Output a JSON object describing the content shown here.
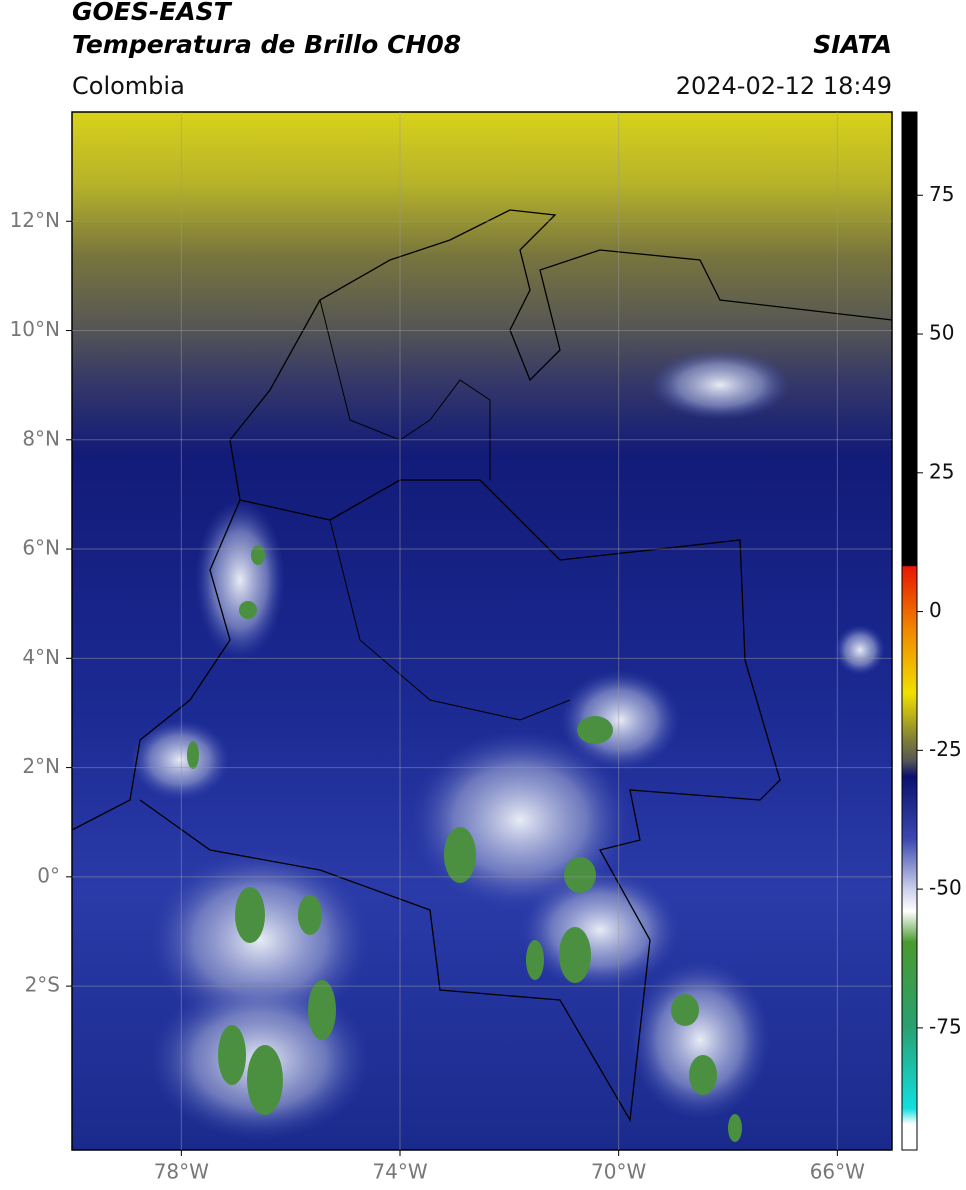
{
  "header": {
    "satellite": "GOES-EAST",
    "product": "Temperatura de Brillo CH08",
    "region": "Colombia",
    "agency": "SIATA",
    "datetime": "2024-02-12 18:49"
  },
  "map": {
    "xlim": [
      -80,
      -65
    ],
    "ylim": [
      -5,
      14
    ],
    "grid": true,
    "xticks": [
      {
        "value": -78,
        "label": "78°W"
      },
      {
        "value": -74,
        "label": "74°W"
      },
      {
        "value": -70,
        "label": "70°W"
      },
      {
        "value": -66,
        "label": "66°W"
      }
    ],
    "yticks": [
      {
        "value": 12,
        "label": "12°N"
      },
      {
        "value": 10,
        "label": "10°N"
      },
      {
        "value": 8,
        "label": "8°N"
      },
      {
        "value": 6,
        "label": "6°N"
      },
      {
        "value": 4,
        "label": "4°N"
      },
      {
        "value": 2,
        "label": "2°N"
      },
      {
        "value": 0,
        "label": "0°"
      },
      {
        "value": -2,
        "label": "2°S"
      }
    ]
  },
  "colorbar": {
    "lim": [
      -97,
      90
    ],
    "ticks": [
      75,
      50,
      25,
      0,
      -25,
      -50,
      -75
    ]
  }
}
